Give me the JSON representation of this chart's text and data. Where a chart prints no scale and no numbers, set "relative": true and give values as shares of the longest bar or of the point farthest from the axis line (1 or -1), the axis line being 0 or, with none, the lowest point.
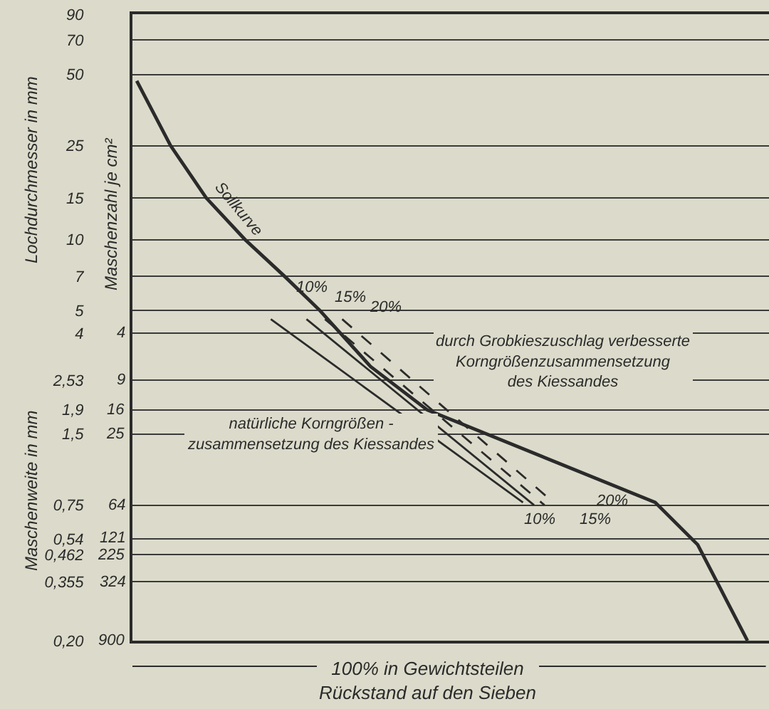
{
  "chart_data": {
    "type": "line",
    "orientation": "horizontal",
    "relative": true,
    "xlabel": "100% in Gewichtsteilen\nRückstand auf den Sieben",
    "ylabel": "Lochdurchmesser in mm",
    "annotations": [
      "Maschenweite in mm",
      "Maschenzahl je cm²",
      "durch Grobkieszuschlag verbesserte\nKorngrößenzusammensetzung\ndes Kiessandes",
      "4",
      "9",
      "16",
      "25",
      "64",
      "121",
      "225",
      "324",
      "900"
    ],
    "ylim": [
      0.2,
      90
    ],
    "yticks": [
      90,
      70,
      50,
      25,
      15,
      10,
      7,
      5,
      4,
      {
        "value": 2.53,
        "label": "2,53"
      },
      {
        "value": 1.9,
        "label": "1,9"
      },
      {
        "value": 1.5,
        "label": "1,5"
      },
      {
        "value": 0.75,
        "label": "0,75"
      },
      {
        "value": 0.54,
        "label": "0,54"
      },
      {
        "value": 0.462,
        "label": "0,462"
      },
      {
        "value": 0.355,
        "label": "0,355"
      },
      {
        "value": 0.2,
        "label": "0,20"
      }
    ],
    "log": "y",
    "grid": "y",
    "legend": false,
    "tick_labels": "y",
    "series": [
      {
        "name": "Sollkurve",
        "color": "#2b2b2b",
        "x": [
          47,
          25,
          15,
          10,
          7,
          5,
          2.9,
          1.9,
          0.77,
          0.51,
          0.2
        ],
        "values": [
          0.007,
          0.062,
          0.12,
          0.183,
          0.247,
          0.305,
          0.387,
          0.479,
          0.85,
          0.919,
          1
        ]
      },
      {
        "name": "natürliche Korngrößen -\nzusammensetzung des Kiessandes",
        "color": "#2b2b2b",
        "x": [
          4.6,
          0.77
        ],
        "values": [
          0.225,
          0.635
        ]
      },
      {
        "name": "10%",
        "color": "#2b2b2b",
        "x": [
          4.6,
          0.75
        ],
        "values": [
          0.283,
          0.653
        ]
      },
      {
        "name": "15%",
        "color": "#2b2b2b",
        "line_style": "dashed",
        "x": [
          4.6,
          0.75
        ],
        "values": [
          0.313,
          0.67
        ]
      },
      {
        "name": "20%",
        "color": "#2b2b2b",
        "line_style": "dashed",
        "x": [
          4.6,
          0.76
        ],
        "values": [
          0.341,
          0.687
        ]
      }
    ]
  }
}
